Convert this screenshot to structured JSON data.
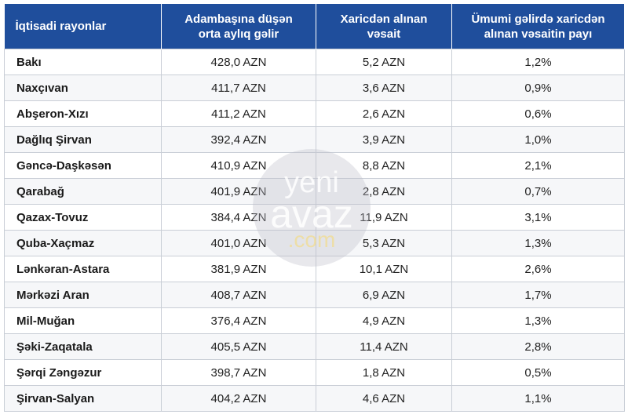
{
  "table": {
    "header": [
      "İqtisadi rayonlar",
      "Adambaşına düşən orta aylıq gəlir",
      "Xaricdən alınan vəsait",
      "Ümumi gəlirdə xaricdən alınan vəsaitin payı"
    ],
    "rows": [
      [
        "Bakı",
        "428,0 AZN",
        "5,2 AZN",
        "1,2%"
      ],
      [
        "Naxçıvan",
        "411,7 AZN",
        "3,6 AZN",
        "0,9%"
      ],
      [
        "Abşeron-Xızı",
        "411,2 AZN",
        "2,6 AZN",
        "0,6%"
      ],
      [
        "Dağlıq Şirvan",
        "392,4 AZN",
        "3,9 AZN",
        "1,0%"
      ],
      [
        "Gəncə-Daşkəsən",
        "410,9 AZN",
        "8,8 AZN",
        "2,1%"
      ],
      [
        "Qarabağ",
        "401,9 AZN",
        "2,8 AZN",
        "0,7%"
      ],
      [
        "Qazax-Tovuz",
        "384,4 AZN",
        "11,9 AZN",
        "3,1%"
      ],
      [
        "Quba-Xaçmaz",
        "401,0 AZN",
        "5,3 AZN",
        "1,3%"
      ],
      [
        "Lənkəran-Astara",
        "381,9 AZN",
        "10,1 AZN",
        "2,6%"
      ],
      [
        "Mərkəzi Aran",
        "408,7 AZN",
        "6,9 AZN",
        "1,7%"
      ],
      [
        "Mil-Muğan",
        "376,4 AZN",
        "4,9 AZN",
        "1,3%"
      ],
      [
        "Şəki-Zaqatala",
        "405,5 AZN",
        "11,4 AZN",
        "2,8%"
      ],
      [
        "Şərqi Zəngəzur",
        "398,7 AZN",
        "1,8 AZN",
        "0,5%"
      ],
      [
        "Şirvan-Salyan",
        "404,2 AZN",
        "4,6 AZN",
        "1,1%"
      ]
    ]
  },
  "watermark": [
    "yeni",
    "avaz",
    ".com"
  ]
}
